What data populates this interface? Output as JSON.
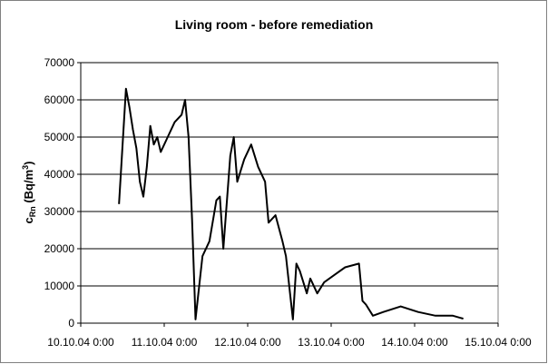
{
  "chart_data": {
    "type": "line",
    "title": "Living room - before remediation",
    "y_label": [
      "c",
      "Rn",
      " (Bq/m",
      "3",
      ")"
    ],
    "x": [
      "2004-10-10T11:00",
      "2004-10-10T13:00",
      "2004-10-10T14:00",
      "2004-10-10T15:00",
      "2004-10-10T16:00",
      "2004-10-10T17:00",
      "2004-10-10T18:00",
      "2004-10-10T19:00",
      "2004-10-10T20:00",
      "2004-10-10T21:00",
      "2004-10-10T22:00",
      "2004-10-10T23:00",
      "2004-10-11T01:00",
      "2004-10-11T03:00",
      "2004-10-11T05:00",
      "2004-10-11T06:00",
      "2004-10-11T07:00",
      "2004-10-11T08:00",
      "2004-10-11T09:00",
      "2004-10-11T11:00",
      "2004-10-11T13:00",
      "2004-10-11T15:00",
      "2004-10-11T16:00",
      "2004-10-11T17:00",
      "2004-10-11T19:00",
      "2004-10-11T20:00",
      "2004-10-11T21:00",
      "2004-10-11T23:00",
      "2004-10-12T01:00",
      "2004-10-12T03:00",
      "2004-10-12T05:00",
      "2004-10-12T06:00",
      "2004-10-12T08:00",
      "2004-10-12T10:00",
      "2004-10-12T11:00",
      "2004-10-12T13:00",
      "2004-10-12T14:00",
      "2004-10-12T15:00",
      "2004-10-12T17:00",
      "2004-10-12T18:00",
      "2004-10-12T20:00",
      "2004-10-12T22:00",
      "2004-10-13T01:00",
      "2004-10-13T04:00",
      "2004-10-13T08:00",
      "2004-10-13T09:00",
      "2004-10-13T10:00",
      "2004-10-13T12:00",
      "2004-10-13T15:00",
      "2004-10-13T20:00",
      "2004-10-14T01:00",
      "2004-10-14T06:00",
      "2004-10-14T11:00",
      "2004-10-14T14:00"
    ],
    "series": [
      {
        "name": "Living room",
        "color": "#000000",
        "values": [
          32000,
          63000,
          58000,
          52000,
          47000,
          38000,
          34000,
          42000,
          53000,
          48000,
          50000,
          46000,
          50000,
          54000,
          56000,
          60000,
          50000,
          28000,
          1000,
          18000,
          22000,
          33000,
          34000,
          20000,
          45000,
          50000,
          38000,
          44000,
          48000,
          42000,
          38000,
          27000,
          29000,
          22000,
          18000,
          1000,
          16000,
          14000,
          8000,
          12000,
          8000,
          11000,
          13000,
          15000,
          16000,
          6000,
          5000,
          2000,
          3000,
          4500,
          3000,
          2000,
          2000,
          1200
        ]
      }
    ],
    "xlim": [
      "2004-10-10T00:00",
      "2004-10-15T00:00"
    ],
    "xticks": [
      {
        "value": "2004-10-10T00:00",
        "label": "10.10.04 0:00"
      },
      {
        "value": "2004-10-11T00:00",
        "label": "11.10.04 0:00"
      },
      {
        "value": "2004-10-12T00:00",
        "label": "12.10.04 0:00"
      },
      {
        "value": "2004-10-13T00:00",
        "label": "13.10.04 0:00"
      },
      {
        "value": "2004-10-14T00:00",
        "label": "14.10.04 0:00"
      },
      {
        "value": "2004-10-15T00:00",
        "label": "15.10.04 0:00"
      }
    ],
    "ylim": [
      0,
      70000
    ],
    "yticks": [
      0,
      10000,
      20000,
      30000,
      40000,
      50000,
      60000,
      70000
    ],
    "grid": true
  }
}
